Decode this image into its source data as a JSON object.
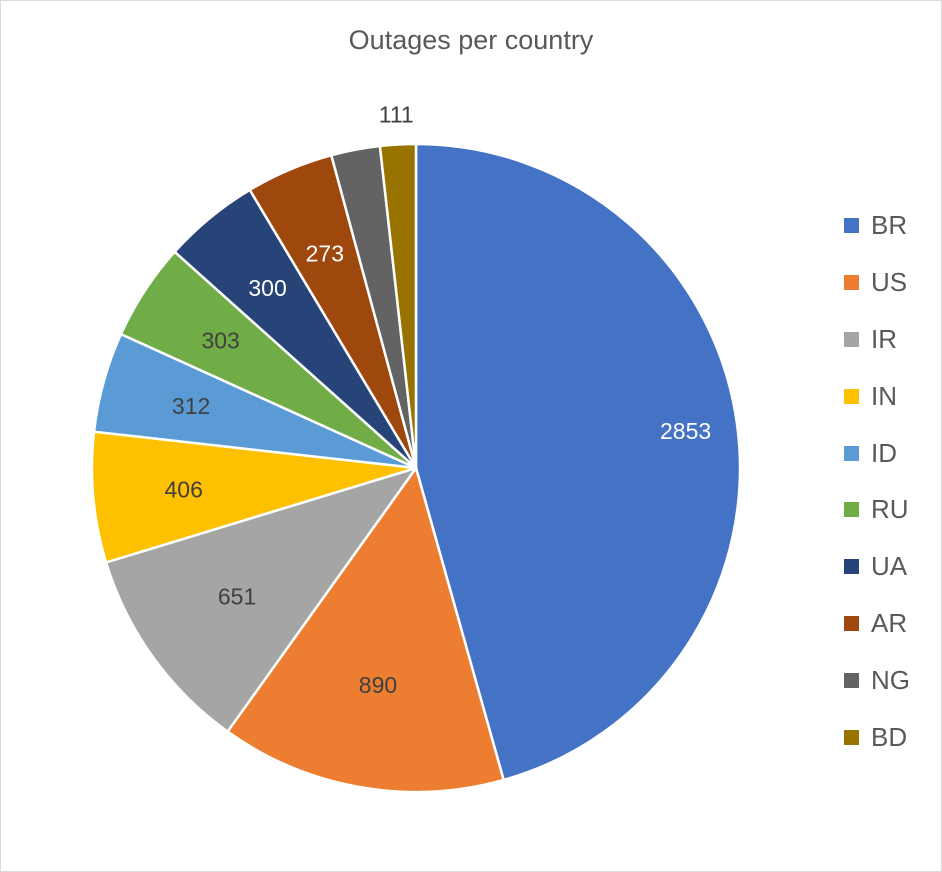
{
  "chart_data": {
    "type": "pie",
    "title": "Outages per country",
    "categories": [
      "BR",
      "US",
      "IR",
      "IN",
      "ID",
      "RU",
      "UA",
      "AR",
      "NG",
      "BD"
    ],
    "values": [
      2853,
      890,
      651,
      406,
      312,
      303,
      300,
      273,
      152,
      111
    ],
    "data_labels": [
      "2853",
      "890",
      "651",
      "406",
      "312",
      "303",
      "300",
      "273",
      "",
      "111"
    ],
    "colors": [
      "#4472C4",
      "#ED7D31",
      "#A5A5A5",
      "#FFC000",
      "#5B9BD5",
      "#70AD47",
      "#264478",
      "#9E480E",
      "#636363",
      "#997300"
    ],
    "label_colors": [
      "#ffffff",
      "#404040",
      "#404040",
      "#404040",
      "#404040",
      "#404040",
      "#ffffff",
      "#ffffff",
      "#404040",
      "#404040"
    ],
    "legend_position": "right",
    "start_angle_deg": 0,
    "direction": "clockwise"
  }
}
